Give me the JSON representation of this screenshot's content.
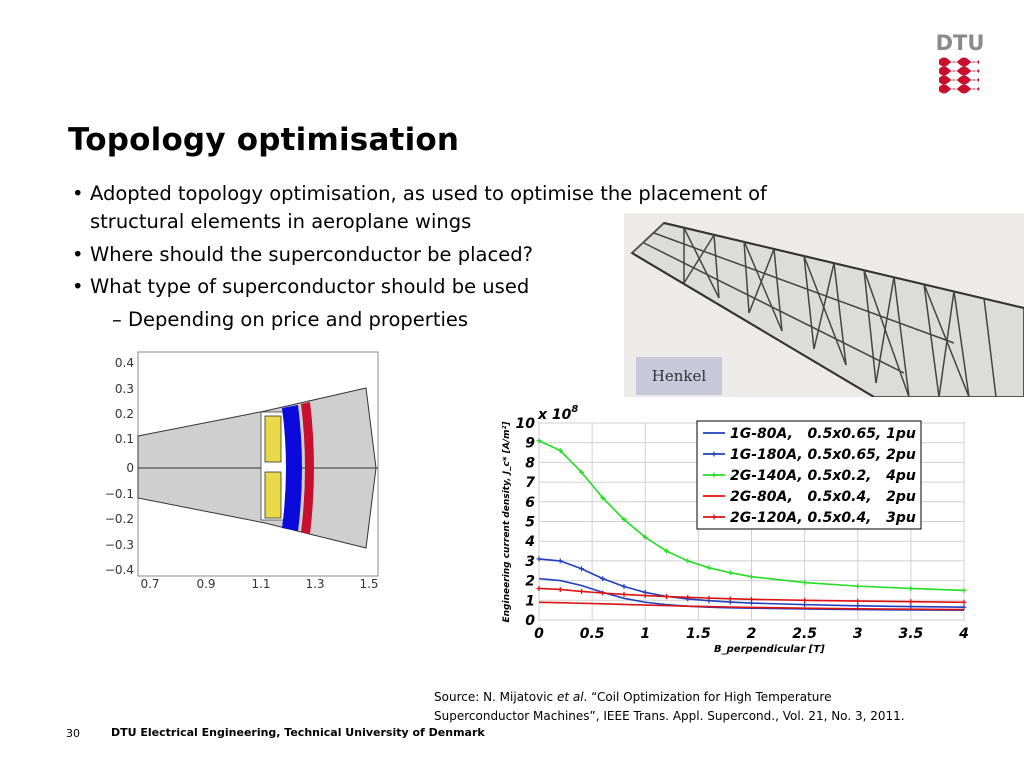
{
  "logo": {
    "text": "DTU",
    "color": "#c8102e"
  },
  "title": "Topology optimisation",
  "bullets": [
    {
      "line1": "Adopted topology optimisation, as used to optimise the placement of",
      "line2": "structural elements in aeroplane wings"
    },
    {
      "line1": "Where should the superconductor be placed?"
    },
    {
      "line1": "What type of superconductor should be used"
    }
  ],
  "sub_bullet": "– Depending on price and properties",
  "wing_image": {
    "credit": "Henkel"
  },
  "topology_plot": {
    "yticks": [
      "0.4",
      "0.3",
      "0.2",
      "0.1",
      "0",
      "−0.1",
      "−0.2",
      "−0.3",
      "−0.4"
    ],
    "xticks": [
      "0.7",
      "0.9",
      "1.1",
      "1.3",
      "1.5"
    ]
  },
  "chart_data": {
    "type": "line",
    "ylabel": "Engineering current density, J_c* [A/m²]",
    "xlabel": "B_perpendicular [T]",
    "y_multiplier": "x 10^8",
    "xlim": [
      0,
      4
    ],
    "ylim": [
      0,
      10
    ],
    "xticks": [
      "0",
      "0.5",
      "1",
      "1.5",
      "2",
      "2.5",
      "3",
      "3.5",
      "4"
    ],
    "yticks": [
      "0",
      "1",
      "2",
      "3",
      "4",
      "5",
      "6",
      "7",
      "8",
      "9",
      "10"
    ],
    "grid": true,
    "legend_position": "top-right",
    "x": [
      0,
      0.2,
      0.4,
      0.6,
      0.8,
      1.0,
      1.2,
      1.4,
      1.6,
      1.8,
      2.0,
      2.5,
      3.0,
      3.5,
      4.0
    ],
    "series": [
      {
        "name": "1G-80A,   0.5x0.65, 1pu",
        "color": "#1f3fbf",
        "marker": "none",
        "values": [
          2.1,
          2.0,
          1.75,
          1.4,
          1.1,
          0.9,
          0.78,
          0.7,
          0.65,
          0.62,
          0.6,
          0.56,
          0.53,
          0.51,
          0.5
        ]
      },
      {
        "name": "1G-180A, 0.5x0.65, 2pu",
        "color": "#1f3fbf",
        "marker": "plus",
        "values": [
          3.1,
          3.0,
          2.6,
          2.1,
          1.7,
          1.4,
          1.2,
          1.07,
          0.98,
          0.91,
          0.86,
          0.78,
          0.72,
          0.68,
          0.65
        ]
      },
      {
        "name": "2G-140A, 0.5x0.2,   4pu",
        "color": "#22dd22",
        "marker": "plus",
        "values": [
          9.1,
          8.6,
          7.5,
          6.2,
          5.1,
          4.2,
          3.5,
          3.0,
          2.65,
          2.4,
          2.2,
          1.9,
          1.72,
          1.6,
          1.5
        ]
      },
      {
        "name": "2G-80A,   0.5x0.4,   2pu",
        "color": "#dd1111",
        "marker": "none",
        "values": [
          0.9,
          0.88,
          0.85,
          0.82,
          0.79,
          0.76,
          0.73,
          0.7,
          0.68,
          0.66,
          0.64,
          0.6,
          0.57,
          0.55,
          0.53
        ]
      },
      {
        "name": "2G-120A, 0.5x0.4,   3pu",
        "color": "#dd1111",
        "marker": "plus",
        "values": [
          1.6,
          1.55,
          1.45,
          1.37,
          1.3,
          1.24,
          1.19,
          1.15,
          1.11,
          1.08,
          1.05,
          1.0,
          0.96,
          0.93,
          0.9
        ]
      }
    ]
  },
  "source": {
    "prefix": "Source: N. Mijatovic ",
    "etal": "et al",
    "rest1": ". “Coil Optimization for High Temperature",
    "line2": "Superconductor Machines”, IEEE Trans. Appl. Supercond., Vol. 21, No. 3, 2011."
  },
  "footer": {
    "page": "30",
    "org": "DTU Electrical Engineering, Technical University of Denmark"
  }
}
